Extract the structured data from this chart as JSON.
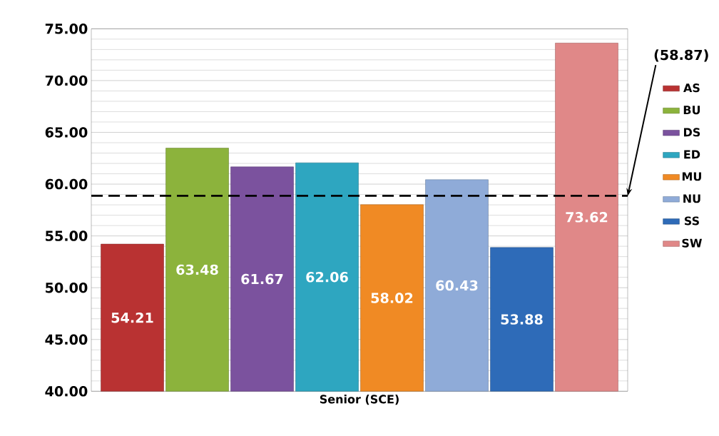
{
  "chart_data": {
    "type": "bar",
    "categories": [
      "Senior (SCE)"
    ],
    "series": [
      {
        "name": "AS",
        "color": "#b93232",
        "values": [
          54.21
        ]
      },
      {
        "name": "BU",
        "color": "#8cb33c",
        "values": [
          63.48
        ]
      },
      {
        "name": "DS",
        "color": "#7b529e",
        "values": [
          61.67
        ]
      },
      {
        "name": "ED",
        "color": "#2ea6c0",
        "values": [
          62.06
        ]
      },
      {
        "name": "MU",
        "color": "#f08a24",
        "values": [
          58.02
        ]
      },
      {
        "name": "NU",
        "color": "#8fabd8",
        "values": [
          60.43
        ]
      },
      {
        "name": "SS",
        "color": "#2e6bb8",
        "values": [
          53.88
        ]
      },
      {
        "name": "SW",
        "color": "#e08888",
        "values": [
          73.62
        ]
      }
    ],
    "ylim": [
      40,
      75
    ],
    "yticks": [
      {
        "value": 40,
        "label": "40.00"
      },
      {
        "value": 45,
        "label": "45.00"
      },
      {
        "value": 50,
        "label": "50.00"
      },
      {
        "value": 55,
        "label": "55.00"
      },
      {
        "value": 60,
        "label": "60.00"
      },
      {
        "value": 65,
        "label": "65.00"
      },
      {
        "value": 70,
        "label": "70.00"
      },
      {
        "value": 75,
        "label": "75.00"
      }
    ],
    "ref_lines": [
      {
        "axis": "y",
        "value": 58.87,
        "label": "(58.87)",
        "color": "#000000",
        "line_style": "dashed"
      }
    ],
    "data_labels": true,
    "grid": "y",
    "legend": "right"
  }
}
